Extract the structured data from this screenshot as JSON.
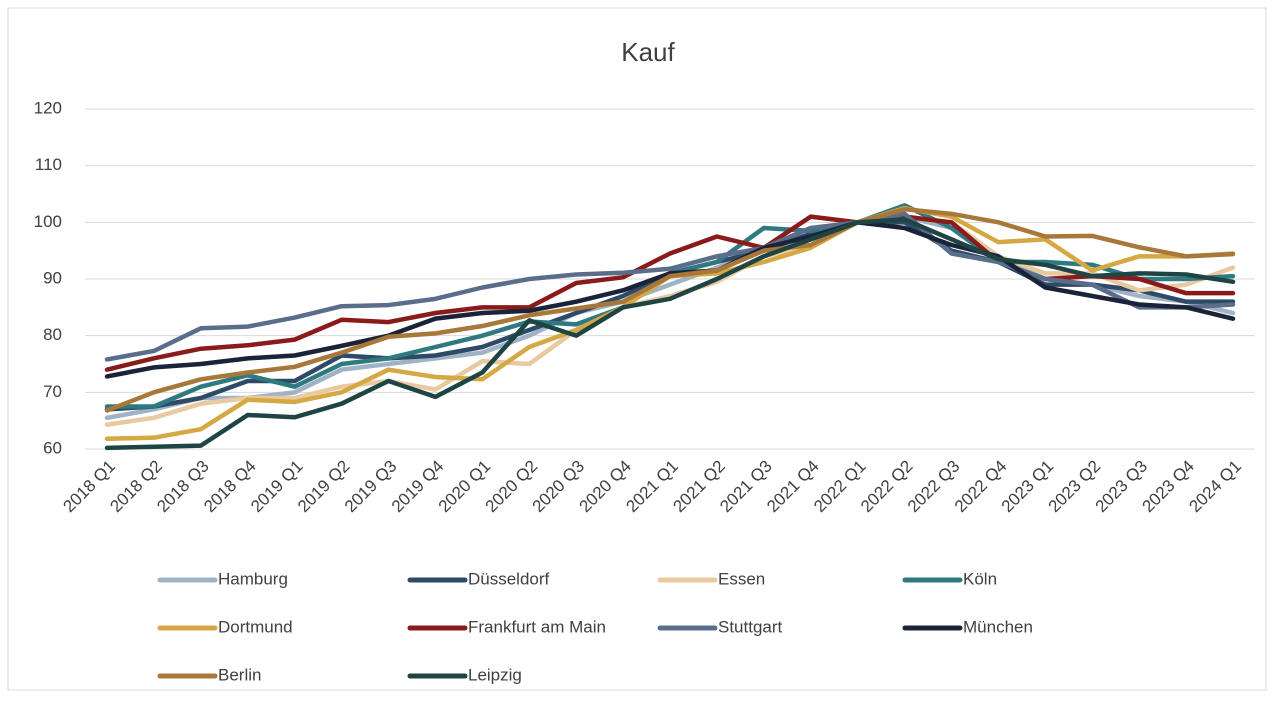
{
  "chart_data": {
    "type": "line",
    "title": "Kauf",
    "categories": [
      "2018 Q1",
      "2018 Q2",
      "2018 Q3",
      "2018 Q4",
      "2019 Q1",
      "2019 Q2",
      "2019 Q3",
      "2019 Q4",
      "2020 Q1",
      "2020 Q2",
      "2020 Q3",
      "2020 Q4",
      "2021 Q1",
      "2021 Q2",
      "2021 Q3",
      "2021 Q4",
      "2022 Q1",
      "2022 Q2",
      "2022 Q3",
      "2022 Q4",
      "2023 Q1",
      "2023 Q2",
      "2023 Q3",
      "2023 Q4",
      "2024 Q1"
    ],
    "ylim": [
      60,
      120
    ],
    "yticks": [
      60,
      70,
      80,
      90,
      100,
      110,
      120
    ],
    "grid": true,
    "series": [
      {
        "name": "Hamburg",
        "color": "#9fb2c6",
        "values": [
          65.5,
          67,
          69,
          69,
          70,
          74,
          75,
          76,
          77,
          80,
          84,
          86,
          89,
          92,
          95,
          97,
          100,
          101,
          99,
          94,
          90,
          89,
          87,
          86,
          84
        ]
      },
      {
        "name": "Düsseldorf",
        "color": "#2f4a66",
        "values": [
          67,
          67.5,
          69,
          72,
          72,
          76.5,
          76,
          76.5,
          78,
          81,
          84,
          87,
          91,
          93,
          95,
          98,
          100,
          100,
          95,
          93,
          89,
          89,
          88,
          86,
          86
        ]
      },
      {
        "name": "Essen",
        "color": "#e8c9a0",
        "values": [
          64.3,
          65.5,
          68,
          69,
          69,
          71,
          72,
          70.5,
          75.5,
          75,
          81,
          85,
          87,
          89.5,
          94,
          96,
          100,
          101,
          100,
          94,
          91,
          91,
          88,
          89,
          92
        ]
      },
      {
        "name": "Köln",
        "color": "#2f7a80",
        "values": [
          67.5,
          67.5,
          71,
          73,
          71,
          75,
          76,
          78,
          80,
          82.5,
          82,
          85,
          91,
          93,
          99,
          98.5,
          100,
          103,
          99,
          93,
          93,
          92.5,
          90,
          90,
          90.5
        ]
      },
      {
        "name": "Dortmund",
        "color": "#d4a843",
        "values": [
          61.8,
          62,
          63.5,
          68.7,
          68.3,
          70,
          74,
          72.7,
          72.3,
          78,
          81,
          85,
          90.5,
          91,
          93,
          95.5,
          100,
          102.5,
          101,
          96.5,
          97,
          91.5,
          94,
          94,
          94.5
        ]
      },
      {
        "name": "Frankfurt am Main",
        "color": "#8b1a1a",
        "values": [
          74,
          76,
          77.7,
          78.3,
          79.3,
          82.8,
          82.4,
          84,
          85,
          85,
          89.3,
          90.3,
          94.5,
          97.5,
          95.5,
          101,
          100,
          101,
          100,
          93,
          90,
          90.5,
          90,
          87.5,
          87.5
        ]
      },
      {
        "name": "Stuttgart",
        "color": "#5a6e8c",
        "values": [
          75.8,
          77.3,
          81.3,
          81.6,
          83.2,
          85.2,
          85.4,
          86.5,
          88.5,
          90,
          90.8,
          91.1,
          91.8,
          94,
          95.5,
          99,
          100,
          101.5,
          94.5,
          93,
          90,
          89,
          85,
          85,
          85.5
        ]
      },
      {
        "name": "München",
        "color": "#1a2338",
        "values": [
          72.8,
          74.4,
          75,
          76,
          76.5,
          78.2,
          80,
          83,
          84,
          84.4,
          86,
          88,
          91,
          91.5,
          95.5,
          97.5,
          100,
          99,
          96,
          94,
          88.5,
          87,
          85.5,
          85,
          83
        ]
      },
      {
        "name": "Berlin",
        "color": "#a8783a",
        "values": [
          66.8,
          70,
          72.3,
          73.5,
          74.5,
          77,
          79.8,
          80.4,
          81.7,
          83.6,
          84.8,
          86,
          90.5,
          91.5,
          95,
          96,
          100,
          102.3,
          101.5,
          100,
          97.5,
          97.6,
          95.6,
          94,
          94.4
        ]
      },
      {
        "name": "Leipzig",
        "color": "#1e4444",
        "values": [
          60.2,
          60.4,
          60.6,
          66,
          65.6,
          68,
          72,
          69.2,
          73.5,
          82.7,
          80,
          85,
          86.5,
          90,
          94,
          97,
          100,
          100.5,
          97,
          93.5,
          92.5,
          90.5,
          91,
          90.8,
          89.5
        ]
      }
    ]
  }
}
